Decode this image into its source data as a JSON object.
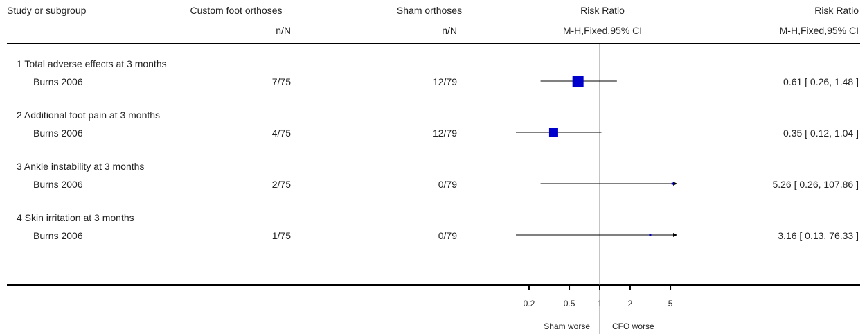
{
  "header": {
    "col_study": "Study or subgroup",
    "col_treat": "Custom foot orthoses",
    "col_treat_sub": "n/N",
    "col_ctrl": "Sham orthoses",
    "col_ctrl_sub": "n/N",
    "col_plot": "Risk Ratio",
    "col_plot_sub": "M-H,Fixed,95% CI",
    "col_effect": "Risk Ratio",
    "col_effect_sub": "M-H,Fixed,95% CI"
  },
  "groups": [
    {
      "title": "1 Total adverse effects at 3 months",
      "study": "Burns 2006",
      "treat": "7/75",
      "ctrl": "12/79",
      "effect_text": "0.61 [ 0.26, 1.48 ]"
    },
    {
      "title": "2 Additional foot pain at 3 months",
      "study": "Burns 2006",
      "treat": "4/75",
      "ctrl": "12/79",
      "effect_text": "0.35 [ 0.12, 1.04 ]"
    },
    {
      "title": "3 Ankle instability at 3 months",
      "study": "Burns 2006",
      "treat": "2/75",
      "ctrl": "0/79",
      "effect_text": "5.26 [ 0.26, 107.86 ]"
    },
    {
      "title": "4 Skin irritation at 3 months",
      "study": "Burns 2006",
      "treat": "1/75",
      "ctrl": "0/79",
      "effect_text": "3.16 [ 0.13, 76.33 ]"
    }
  ],
  "axis": {
    "ticks": [
      "0.2",
      "0.5",
      "1",
      "2",
      "5"
    ],
    "left_label": "Sham worse",
    "right_label": "CFO worse"
  },
  "chart_data": {
    "type": "forest",
    "scale": "log",
    "xlim": [
      0.2,
      5
    ],
    "reference_line": 1,
    "marker_color": "#0000cc",
    "categories": [
      "1 Total adverse effects at 3 months",
      "2 Additional foot pain at 3 months",
      "3 Ankle instability at 3 months",
      "4 Skin irritation at 3 months"
    ],
    "rr": [
      0.61,
      0.35,
      5.26,
      3.16
    ],
    "ci_low": [
      0.26,
      0.12,
      0.26,
      0.13
    ],
    "ci_high": [
      1.48,
      1.04,
      107.86,
      76.33
    ]
  }
}
